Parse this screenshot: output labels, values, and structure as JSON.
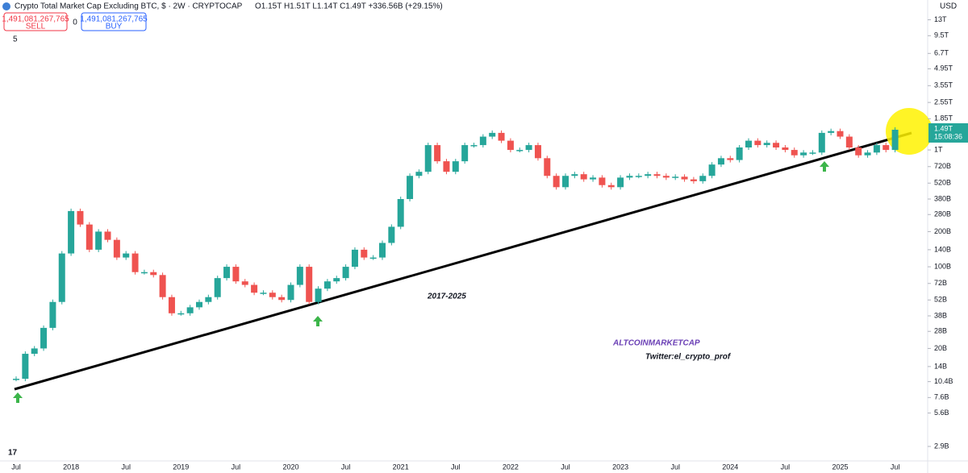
{
  "toolbar": {
    "title": "Crypto Total Market Cap Excluding BTC, $ · 2W · CRYPTOCAP",
    "ohlc": "O1.15T H1.51T L1.14T C1.49T +336.56B (+29.15%)",
    "sell_price": "1,491,081,267,765",
    "sell_label": "SELL",
    "spread": "0",
    "buy_price": "1,491,081,267,765",
    "buy_label": "BUY",
    "indicator_count": "5",
    "currency": "USD"
  },
  "chart_data": {
    "type": "candlestick",
    "log_scale": true,
    "grid": false,
    "x": [
      "2017-07",
      "2017-08",
      "2017-09",
      "2017-10",
      "2017-11",
      "2017-12",
      "2018-01",
      "2018-02",
      "2018-03",
      "2018-04",
      "2018-05",
      "2018-06",
      "2018-07",
      "2018-08",
      "2018-09",
      "2018-10",
      "2018-11",
      "2018-12",
      "2019-01",
      "2019-02",
      "2019-03",
      "2019-04",
      "2019-05",
      "2019-06",
      "2019-07",
      "2019-08",
      "2019-09",
      "2019-10",
      "2019-11",
      "2019-12",
      "2020-01",
      "2020-02",
      "2020-03",
      "2020-04",
      "2020-05",
      "2020-06",
      "2020-07",
      "2020-08",
      "2020-09",
      "2020-10",
      "2020-11",
      "2020-12",
      "2021-01",
      "2021-02",
      "2021-03",
      "2021-04",
      "2021-05",
      "2021-06",
      "2021-07",
      "2021-08",
      "2021-09",
      "2021-10",
      "2021-11",
      "2021-12",
      "2022-01",
      "2022-02",
      "2022-03",
      "2022-04",
      "2022-05",
      "2022-06",
      "2022-07",
      "2022-08",
      "2022-09",
      "2022-10",
      "2022-11",
      "2022-12",
      "2023-01",
      "2023-02",
      "2023-03",
      "2023-04",
      "2023-05",
      "2023-06",
      "2023-07",
      "2023-08",
      "2023-09",
      "2023-10",
      "2023-11",
      "2023-12",
      "2024-01",
      "2024-02",
      "2024-03",
      "2024-04",
      "2024-05",
      "2024-06",
      "2024-07",
      "2024-08",
      "2024-09",
      "2024-10",
      "2024-11",
      "2024-12",
      "2025-01",
      "2025-02",
      "2025-03",
      "2025-04",
      "2025-05",
      "2025-06",
      "2025-07"
    ],
    "series": [
      {
        "name": "Crypto Total Market Cap Excluding BTC",
        "up_color": "#26a69a",
        "down_color": "#ef5350",
        "values": [
          11000000000.0,
          18000000000.0,
          20000000000.0,
          30000000000.0,
          50000000000.0,
          130000000000.0,
          300000000000.0,
          230000000000.0,
          140000000000.0,
          200000000000.0,
          170000000000.0,
          120000000000.0,
          130000000000.0,
          90000000000.0,
          90000000000.0,
          85000000000.0,
          55000000000.0,
          40000000000.0,
          40000000000.0,
          45000000000.0,
          50000000000.0,
          55000000000.0,
          80000000000.0,
          100000000000.0,
          75000000000.0,
          70000000000.0,
          60000000000.0,
          60000000000.0,
          55000000000.0,
          52000000000.0,
          70000000000.0,
          100000000000.0,
          50000000000.0,
          65000000000.0,
          75000000000.0,
          80000000000.0,
          100000000000.0,
          140000000000.0,
          120000000000.0,
          120000000000.0,
          160000000000.0,
          220000000000.0,
          380000000000.0,
          600000000000.0,
          650000000000.0,
          1100000000000.0,
          800000000000.0,
          650000000000.0,
          800000000000.0,
          1100000000000.0,
          1100000000000.0,
          1300000000000.0,
          1400000000000.0,
          1200000000000.0,
          1000000000000.0,
          1000000000000.0,
          1100000000000.0,
          850000000000.0,
          600000000000.0,
          480000000000.0,
          600000000000.0,
          620000000000.0,
          560000000000.0,
          580000000000.0,
          500000000000.0,
          480000000000.0,
          580000000000.0,
          600000000000.0,
          600000000000.0,
          620000000000.0,
          600000000000.0,
          580000000000.0,
          590000000000.0,
          560000000000.0,
          540000000000.0,
          600000000000.0,
          750000000000.0,
          850000000000.0,
          820000000000.0,
          1050000000000.0,
          1200000000000.0,
          1100000000000.0,
          1150000000000.0,
          1050000000000.0,
          1000000000000.0,
          900000000000.0,
          950000000000.0,
          950000000000.0,
          1400000000000.0,
          1450000000000.0,
          1300000000000.0,
          1050000000000.0,
          900000000000.0,
          950000000000.0,
          1100000000000.0,
          1000000000000.0,
          1490000000000.0
        ]
      }
    ],
    "ylim": [
      2180000000.0,
      19200000000000.0
    ],
    "yticks": [
      {
        "value": 13000000000000.0,
        "label": "13T"
      },
      {
        "value": 9500000000000.0,
        "label": "9.5T"
      },
      {
        "value": 6700000000000.0,
        "label": "6.7T"
      },
      {
        "value": 4950000000000.0,
        "label": "4.95T"
      },
      {
        "value": 3550000000000.0,
        "label": "3.55T"
      },
      {
        "value": 2550000000000.0,
        "label": "2.55T"
      },
      {
        "value": 1850000000000.0,
        "label": "1.85T"
      },
      {
        "value": 1000000000000.0,
        "label": "1T"
      },
      {
        "value": 720000000000.0,
        "label": "720B"
      },
      {
        "value": 520000000000.0,
        "label": "520B"
      },
      {
        "value": 380000000000.0,
        "label": "380B"
      },
      {
        "value": 280000000000.0,
        "label": "280B"
      },
      {
        "value": 200000000000.0,
        "label": "200B"
      },
      {
        "value": 140000000000.0,
        "label": "140B"
      },
      {
        "value": 100000000000.0,
        "label": "100B"
      },
      {
        "value": 72000000000.0,
        "label": "72B"
      },
      {
        "value": 52000000000.0,
        "label": "52B"
      },
      {
        "value": 38000000000.0,
        "label": "38B"
      },
      {
        "value": 28000000000.0,
        "label": "28B"
      },
      {
        "value": 20000000000.0,
        "label": "20B"
      },
      {
        "value": 14000000000.0,
        "label": "14B"
      },
      {
        "value": 10400000000.0,
        "label": "10.4B"
      },
      {
        "value": 7600000000.0,
        "label": "7.6B"
      },
      {
        "value": 5600000000.0,
        "label": "5.6B"
      },
      {
        "value": 2900000000.0,
        "label": "2.9B"
      }
    ],
    "xticks": [
      {
        "value": "2017-07",
        "label": "Jul"
      },
      {
        "value": "2018-01",
        "label": "2018"
      },
      {
        "value": "2018-07",
        "label": "Jul"
      },
      {
        "value": "2019-01",
        "label": "2019"
      },
      {
        "value": "2019-07",
        "label": "Jul"
      },
      {
        "value": "2020-01",
        "label": "2020"
      },
      {
        "value": "2020-07",
        "label": "Jul"
      },
      {
        "value": "2021-01",
        "label": "2021"
      },
      {
        "value": "2021-07",
        "label": "Jul"
      },
      {
        "value": "2022-01",
        "label": "2022"
      },
      {
        "value": "2022-07",
        "label": "Jul"
      },
      {
        "value": "2023-01",
        "label": "2023"
      },
      {
        "value": "2023-07",
        "label": "Jul"
      },
      {
        "value": "2024-01",
        "label": "2024"
      },
      {
        "value": "2024-07",
        "label": "Jul"
      },
      {
        "value": "2025-01",
        "label": "2025"
      },
      {
        "value": "2025-07",
        "label": "Jul"
      }
    ],
    "price_label": {
      "value": 1490000000000.0,
      "label": "1.49T",
      "countdown": "15:08:36"
    },
    "annotations": [
      "2017-2025",
      "ALTCOINMARKETCAP",
      "Twitter:el_crypto_prof"
    ]
  }
}
